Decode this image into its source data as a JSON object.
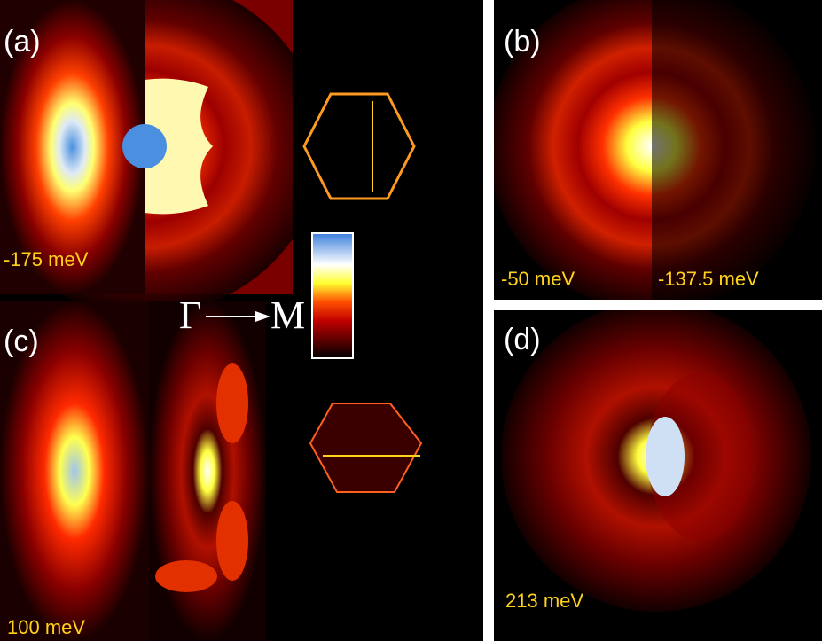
{
  "panels": [
    {
      "label": "(a)",
      "energy_labels": [
        "-175 meV"
      ]
    },
    {
      "label": "(b)",
      "energy_labels": [
        "-50 meV",
        "-137.5 meV"
      ]
    },
    {
      "label": "(c)",
      "energy_labels": [
        "100 meV"
      ]
    },
    {
      "label": "(d)",
      "energy_labels": [
        "213 meV"
      ]
    }
  ],
  "direction": {
    "from": "Γ",
    "to": "M"
  }
}
